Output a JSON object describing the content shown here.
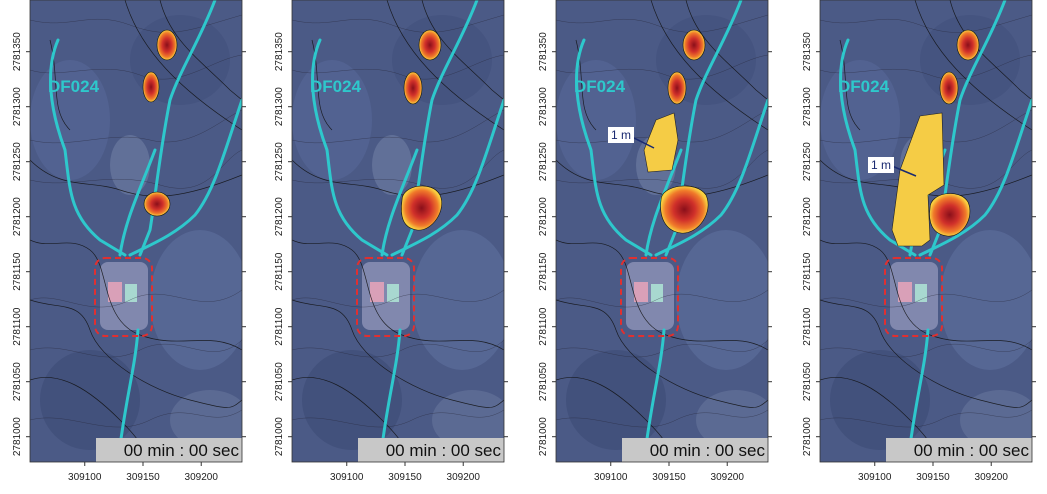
{
  "axes": {
    "xlim": [
      309053,
      309235
    ],
    "ylim": [
      2780977,
      2781397
    ],
    "xticks": [
      309100,
      309150,
      309200
    ],
    "yticks": [
      2781000,
      2781050,
      2781100,
      2781150,
      2781200,
      2781250,
      2781300,
      2781350
    ]
  },
  "panels": [
    {
      "channel_label": "DF024",
      "timer": "00 min : 00 sec"
    },
    {
      "channel_label": "DF024",
      "timer": "00 min : 00 sec"
    },
    {
      "channel_label": "DF024",
      "timer": "00 min : 00 sec",
      "deposit_label": "1 m"
    },
    {
      "channel_label": "DF024",
      "timer": "00 min : 00 sec",
      "deposit_label": "1 m"
    }
  ]
}
